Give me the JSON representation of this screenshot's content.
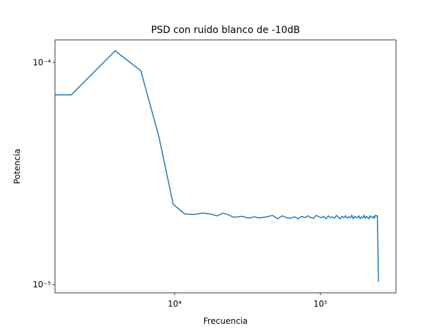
{
  "chart_data": {
    "type": "line",
    "title": "PSD con ruido blanco de -10dB",
    "x_label": "Frecuencia",
    "y_label": "Potencia",
    "xscale": "log",
    "yscale": "log",
    "grid": false,
    "xlim": [
      1510,
      330000
    ],
    "ylim": [
      9.18e-06,
      0.0001264
    ],
    "xticks": [
      {
        "value": 10000,
        "label": "10⁴"
      },
      {
        "value": 100000,
        "label": "10⁵"
      }
    ],
    "yticks": [
      {
        "value": 1e-05,
        "label": "10⁻⁵"
      },
      {
        "value": 0.0001,
        "label": "10⁻⁴"
      }
    ],
    "x": [
      0,
      1953.125,
      3906.25,
      5859.375,
      7812.5,
      9765.625,
      11718.75,
      13671.875,
      15625,
      17578.125,
      19531.25,
      21484.375,
      23437.5,
      25390.625,
      27343.75,
      29296.875,
      31250,
      33203.125,
      35156.25,
      37109.375,
      39062.5,
      42968.75,
      46875,
      50781.25,
      54687.5,
      58593.75,
      62500,
      66406.25,
      70312.5,
      74218.75,
      78125,
      82031.25,
      85937.5,
      89843.75,
      93750,
      97656.25,
      101562.5,
      105468.75,
      109375,
      113281.25,
      117187.5,
      121093.75,
      125000,
      128906.25,
      132812.5,
      136718.75,
      140625,
      144531.25,
      148437.5,
      152343.75,
      156250,
      160156.25,
      164062.5,
      167968.75,
      171875,
      175781.25,
      179687.5,
      183593.75,
      187500,
      191406.25,
      195312.5,
      199218.75,
      203125,
      207031.25,
      210937.5,
      214843.75,
      218750,
      222656.25,
      226562.5,
      230468.75,
      234375,
      238281.25,
      242187.5,
      246093.75,
      250000
    ],
    "series": [
      {
        "name": "PSD",
        "color": "#1f77b4",
        "values": [
          7.15e-05,
          7.15e-05,
          0.0001129,
          9.18e-05,
          4.6e-05,
          2.3e-05,
          2.08e-05,
          2.07e-05,
          2.1e-05,
          2.08e-05,
          2.04e-05,
          2.1e-05,
          2.06e-05,
          2.01e-05,
          2.02e-05,
          2.03e-05,
          2e-05,
          2e-05,
          2.02e-05,
          2e-05,
          2e-05,
          2.02e-05,
          2.05e-05,
          1.98e-05,
          2.04e-05,
          2e-05,
          1.99e-05,
          2.02e-05,
          1.98e-05,
          2.03e-05,
          2e-05,
          2.04e-05,
          2e-05,
          1.99e-05,
          2.05e-05,
          2.02e-05,
          2e-05,
          2.03e-05,
          1.98e-05,
          2.04e-05,
          2e-05,
          2.02e-05,
          1.99e-05,
          2.05e-05,
          2.01e-05,
          1.98e-05,
          2.03e-05,
          2e-05,
          2.04e-05,
          1.99e-05,
          2.02e-05,
          2e-05,
          2.05e-05,
          1.98e-05,
          2.03e-05,
          2.01e-05,
          2e-05,
          2.04e-05,
          1.98e-05,
          2.02e-05,
          2e-05,
          2.05e-05,
          1.99e-05,
          2.03e-05,
          2e-05,
          1.98e-05,
          2.04e-05,
          2.01e-05,
          2e-05,
          2.03e-05,
          1.99e-05,
          2.05e-05,
          2.04e-05,
          2.04e-05,
          1.03e-05
        ]
      }
    ]
  }
}
